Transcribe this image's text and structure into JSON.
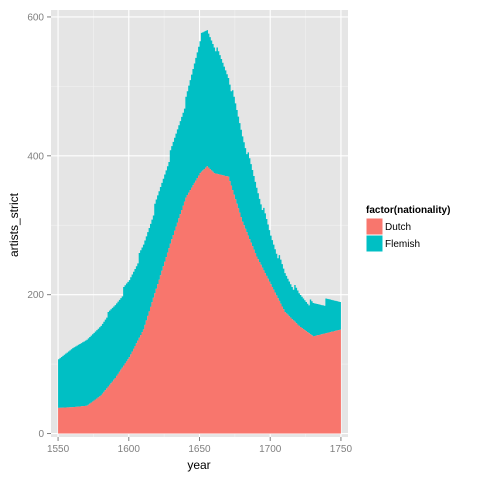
{
  "chart_data": {
    "type": "area",
    "stacked": true,
    "xlabel": "year",
    "ylabel": "artists_strict",
    "xlim": [
      1545,
      1755
    ],
    "ylim": [
      -5,
      610
    ],
    "x_ticks": [
      1550,
      1600,
      1650,
      1700,
      1750
    ],
    "y_ticks": [
      0,
      200,
      400,
      600
    ],
    "grid": true,
    "legend": {
      "title": "factor(nationality)",
      "position": "right",
      "entries": [
        "Dutch",
        "Flemish"
      ]
    },
    "x": [
      1550,
      1560,
      1570,
      1580,
      1590,
      1600,
      1610,
      1620,
      1630,
      1640,
      1650,
      1655,
      1660,
      1670,
      1680,
      1690,
      1700,
      1710,
      1720,
      1730,
      1740,
      1750
    ],
    "series": [
      {
        "name": "Dutch",
        "color": "#f8766d",
        "values": [
          37,
          38,
          40,
          55,
          80,
          110,
          150,
          215,
          280,
          340,
          375,
          385,
          375,
          370,
          305,
          255,
          215,
          175,
          155,
          140,
          145,
          150
        ]
      },
      {
        "name": "Flemish",
        "color": "#00bfc4",
        "values": [
          70,
          85,
          95,
          100,
          105,
          110,
          120,
          125,
          130,
          140,
          195,
          195,
          185,
          145,
          125,
          100,
          70,
          55,
          45,
          45,
          45,
          45
        ]
      }
    ]
  }
}
